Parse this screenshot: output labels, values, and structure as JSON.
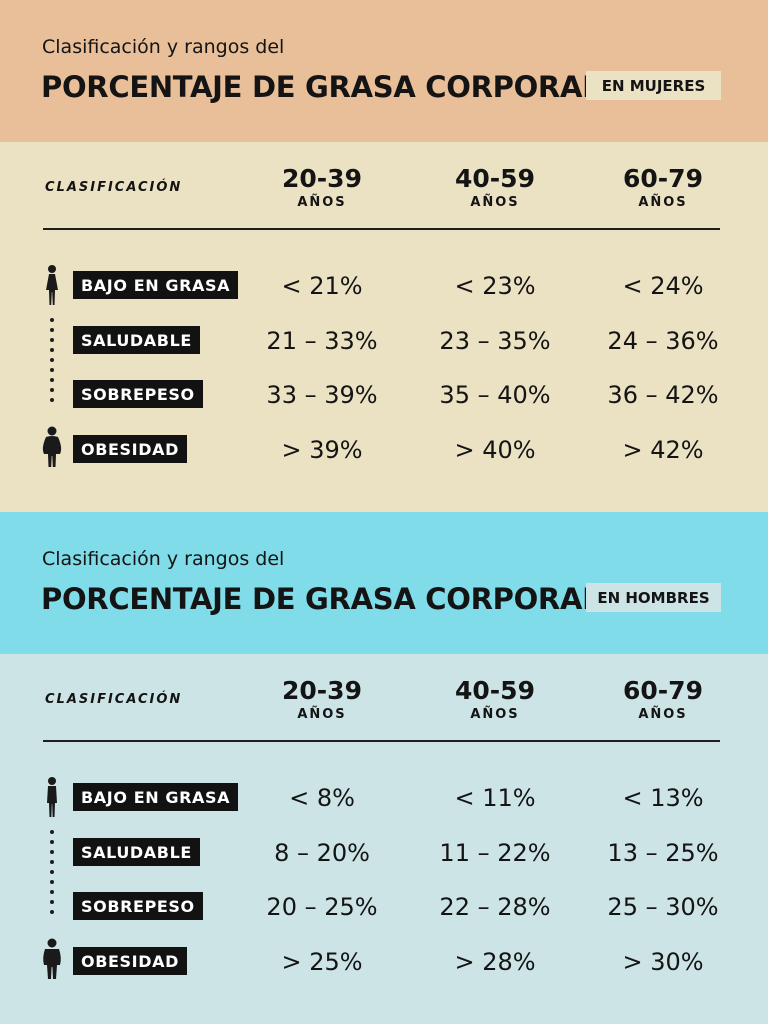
{
  "sections": [
    {
      "pretitle": "Clasificación y rangos del",
      "title": "PORCENTAJE DE GRASA CORPORAL",
      "badge": "EN MUJERES",
      "colors": {
        "header": "#e8bf99",
        "body": "#ebe1c3",
        "badge": "#ebe1c3"
      },
      "column_label": "CLASIFICACIÓN",
      "age_groups": [
        {
          "range": "20-39",
          "unit": "AÑOS"
        },
        {
          "range": "40-59",
          "unit": "AÑOS"
        },
        {
          "range": "60-79",
          "unit": "AÑOS"
        }
      ],
      "rows": [
        {
          "label": "BAJO EN GRASA",
          "values": [
            "< 21%",
            "< 23%",
            "< 24%"
          ]
        },
        {
          "label": "SALUDABLE",
          "values": [
            "21 – 33%",
            "23 – 35%",
            "24 – 36%"
          ]
        },
        {
          "label": "SOBREPESO",
          "values": [
            "33 – 39%",
            "35 – 40%",
            "36 – 42%"
          ]
        },
        {
          "label": "OBESIDAD",
          "values": [
            "> 39%",
            "> 40%",
            "> 42%"
          ]
        }
      ],
      "icons": {
        "top": "thin-woman-icon",
        "bottom": "heavy-woman-icon"
      }
    },
    {
      "pretitle": "Clasificación y rangos del",
      "title": "PORCENTAJE DE GRASA CORPORAL",
      "badge": "EN HOMBRES",
      "colors": {
        "header": "#7fdce8",
        "body": "#cde4e7",
        "badge": "#cde4e7"
      },
      "column_label": "CLASIFICACIÓN",
      "age_groups": [
        {
          "range": "20-39",
          "unit": "AÑOS"
        },
        {
          "range": "40-59",
          "unit": "AÑOS"
        },
        {
          "range": "60-79",
          "unit": "AÑOS"
        }
      ],
      "rows": [
        {
          "label": "BAJO EN GRASA",
          "values": [
            "< 8%",
            "< 11%",
            "< 13%"
          ]
        },
        {
          "label": "SALUDABLE",
          "values": [
            "8 – 20%",
            "11 – 22%",
            "13 – 25%"
          ]
        },
        {
          "label": "SOBREPESO",
          "values": [
            "20 – 25%",
            "22 – 28%",
            "25 – 30%"
          ]
        },
        {
          "label": "OBESIDAD",
          "values": [
            "> 25%",
            "> 28%",
            "> 30%"
          ]
        }
      ],
      "icons": {
        "top": "thin-man-icon",
        "bottom": "heavy-man-icon"
      }
    }
  ]
}
